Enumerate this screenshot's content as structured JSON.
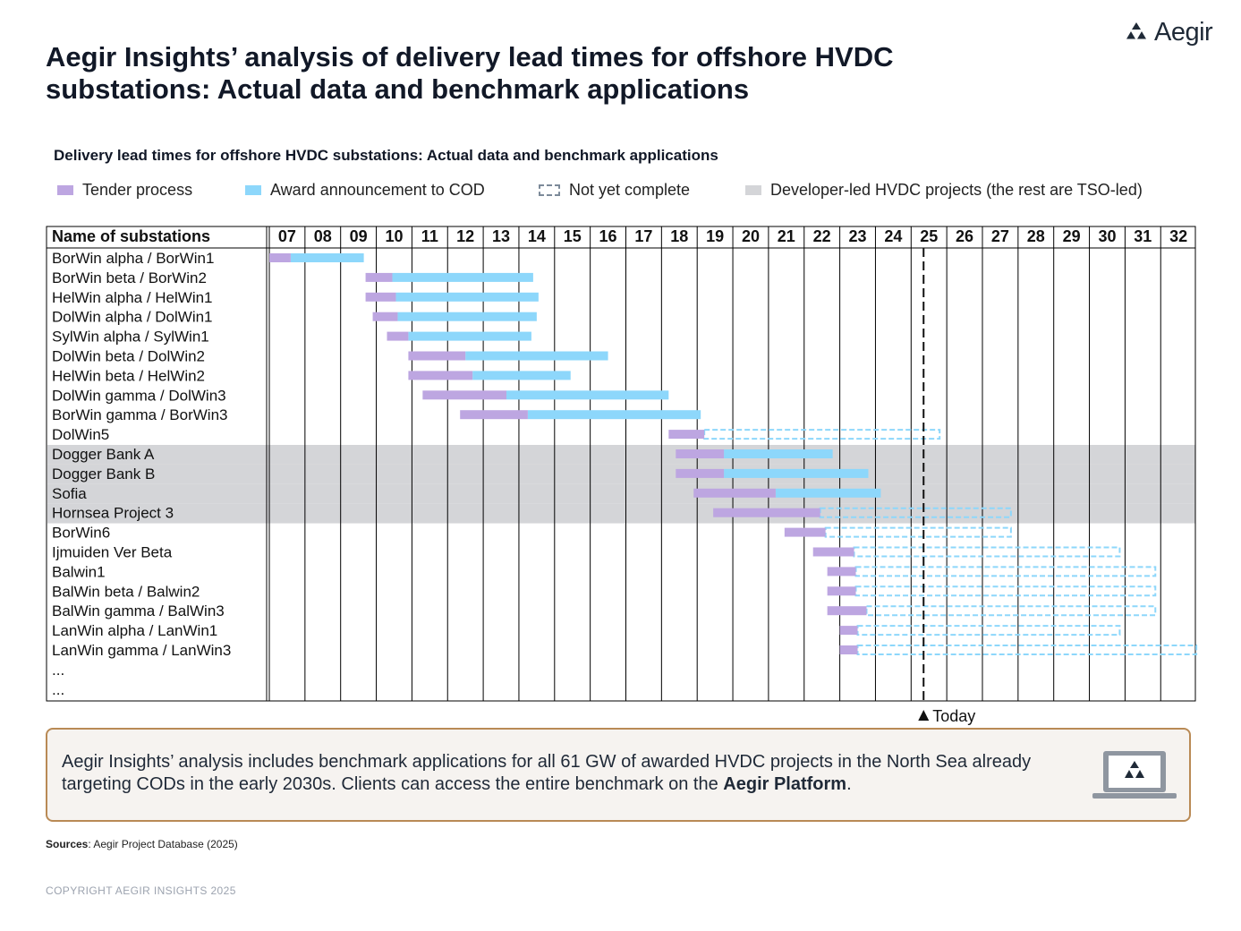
{
  "brand": {
    "name": "Aegir",
    "logo_icon": "aegir-triangles-icon"
  },
  "page_title": "Aegir Insights’ analysis of delivery lead times for offshore HVDC substations: Actual data and benchmark applications",
  "colors": {
    "tender": "#bda6e1",
    "award": "#8dd7fb",
    "not_complete": "#8dd7fb",
    "developer_band": "#d4d5d8",
    "grid": "#000000",
    "callout_border": "#b98a55",
    "callout_bg": "#f6f3f0"
  },
  "chart_data": {
    "type": "gantt",
    "title": "Delivery lead times for offshore HVDC substations: Actual data and benchmark applications",
    "legend": {
      "tender": "Tender process",
      "award": "Award announcement to COD",
      "not_complete": "Not yet complete",
      "developer": "Developer-led HVDC projects (the rest are TSO-led)"
    },
    "row_header": "Name of substations",
    "years": [
      "07",
      "08",
      "09",
      "10",
      "11",
      "12",
      "13",
      "14",
      "15",
      "16",
      "17",
      "18",
      "19",
      "20",
      "21",
      "22",
      "23",
      "24",
      "25",
      "26",
      "27",
      "28",
      "29",
      "30",
      "31",
      "32"
    ],
    "x_unit": "year (20xx)",
    "today": 25.35,
    "today_label": "Today",
    "rows": [
      {
        "name": "BorWin alpha / BorWin1",
        "tender": [
          7.0,
          7.6
        ],
        "award": [
          7.6,
          9.65
        ],
        "pending": null,
        "developer": false
      },
      {
        "name": "BorWin beta / BorWin2",
        "tender": [
          9.7,
          10.45
        ],
        "award": [
          10.45,
          14.4
        ],
        "pending": null,
        "developer": false
      },
      {
        "name": "HelWin alpha / HelWin1",
        "tender": [
          9.7,
          10.55
        ],
        "award": [
          10.55,
          14.55
        ],
        "pending": null,
        "developer": false
      },
      {
        "name": "DolWin alpha / DolWin1",
        "tender": [
          9.9,
          10.6
        ],
        "award": [
          10.6,
          14.5
        ],
        "pending": null,
        "developer": false
      },
      {
        "name": "SylWin alpha / SylWin1",
        "tender": [
          10.3,
          10.9
        ],
        "award": [
          10.9,
          14.35
        ],
        "pending": null,
        "developer": false
      },
      {
        "name": "DolWin beta / DolWin2",
        "tender": [
          10.9,
          12.5
        ],
        "award": [
          12.5,
          16.5
        ],
        "pending": null,
        "developer": false
      },
      {
        "name": "HelWin beta / HelWin2",
        "tender": [
          10.9,
          12.7
        ],
        "award": [
          12.7,
          15.45
        ],
        "pending": null,
        "developer": false
      },
      {
        "name": "DolWin gamma / DolWin3",
        "tender": [
          11.3,
          13.65
        ],
        "award": [
          13.65,
          18.2
        ],
        "pending": null,
        "developer": false
      },
      {
        "name": "BorWin gamma / BorWin3",
        "tender": [
          12.35,
          14.25
        ],
        "award": [
          14.25,
          19.1
        ],
        "pending": null,
        "developer": false
      },
      {
        "name": "DolWin5",
        "tender": [
          18.2,
          19.2
        ],
        "award": null,
        "pending": [
          19.2,
          25.8
        ],
        "developer": false
      },
      {
        "name": "Dogger Bank A",
        "tender": [
          18.4,
          19.75
        ],
        "award": [
          19.75,
          22.8
        ],
        "pending": null,
        "developer": true
      },
      {
        "name": "Dogger Bank B",
        "tender": [
          18.4,
          19.75
        ],
        "award": [
          19.75,
          23.8
        ],
        "pending": null,
        "developer": true
      },
      {
        "name": "Sofia",
        "tender": [
          18.9,
          21.2
        ],
        "award": [
          21.2,
          24.15
        ],
        "pending": null,
        "developer": true
      },
      {
        "name": "Hornsea Project 3",
        "tender": [
          19.45,
          22.45
        ],
        "award": null,
        "pending": [
          22.45,
          27.8
        ],
        "developer": true
      },
      {
        "name": "BorWin6",
        "tender": [
          21.45,
          22.6
        ],
        "award": null,
        "pending": [
          22.6,
          27.8
        ],
        "developer": false
      },
      {
        "name": "Ijmuiden Ver Beta",
        "tender": [
          22.25,
          23.4
        ],
        "award": null,
        "pending": [
          23.4,
          30.85
        ],
        "developer": false
      },
      {
        "name": "Balwin1",
        "tender": [
          22.65,
          23.45
        ],
        "award": null,
        "pending": [
          23.45,
          31.85
        ],
        "developer": false
      },
      {
        "name": "BalWin beta / Balwin2",
        "tender": [
          22.65,
          23.45
        ],
        "award": null,
        "pending": [
          23.45,
          31.85
        ],
        "developer": false
      },
      {
        "name": "BalWin gamma / BalWin3",
        "tender": [
          22.65,
          23.75
        ],
        "award": null,
        "pending": [
          23.75,
          31.85
        ],
        "developer": false
      },
      {
        "name": "LanWin alpha / LanWin1",
        "tender": [
          23.0,
          23.5
        ],
        "award": null,
        "pending": [
          23.5,
          30.85
        ],
        "developer": false
      },
      {
        "name": "LanWin gamma / LanWin3",
        "tender": [
          23.0,
          23.5
        ],
        "award": null,
        "pending": [
          23.5,
          33.0
        ],
        "developer": false
      },
      {
        "name": "...",
        "tender": null,
        "award": null,
        "pending": null,
        "developer": false
      },
      {
        "name": "...",
        "tender": null,
        "award": null,
        "pending": null,
        "developer": false
      }
    ]
  },
  "callout": {
    "text": "Aegir Insights’ analysis includes benchmark applications for all 61 GW of awarded HVDC projects in the North Sea already targeting CODs in the early 2030s. Clients can access the entire benchmark on the ",
    "emphasis": "Aegir Platform",
    "end": ".",
    "icon": "laptop-aegir-icon"
  },
  "sources": {
    "label": "Sources",
    "text": ": Aegir Project Database (2025)"
  },
  "copyright": "COPYRIGHT AEGIR INSIGHTS 2025"
}
